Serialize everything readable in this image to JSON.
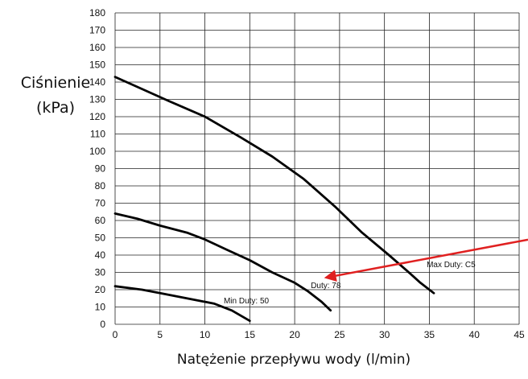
{
  "chart_data": {
    "type": "line",
    "ylabel_line1": "Ciśnienie",
    "ylabel_line2": "(kPa)",
    "xlabel": "Natężenie przepływu wody (l/min)",
    "xlim": [
      0,
      45
    ],
    "ylim": [
      0,
      180
    ],
    "xticks": [
      0,
      5,
      10,
      15,
      20,
      25,
      30,
      35,
      40,
      45
    ],
    "yticks": [
      0,
      10,
      20,
      30,
      40,
      50,
      60,
      70,
      80,
      90,
      100,
      110,
      120,
      130,
      140,
      150,
      160,
      170,
      180
    ],
    "grid": true,
    "series": [
      {
        "label": "Max Duty: C5",
        "x": [
          0,
          3,
          6,
          10,
          14,
          17.5,
          21,
          24.5,
          27.5,
          30.5,
          32.5,
          34,
          35.5
        ],
        "y": [
          143,
          136,
          129,
          120,
          108,
          97,
          84,
          68,
          53,
          40,
          31,
          24,
          18
        ]
      },
      {
        "label": "Duty: 78",
        "x": [
          0,
          2.5,
          5,
          8,
          10,
          12.5,
          15,
          17.5,
          20,
          21.5,
          23,
          24
        ],
        "y": [
          64,
          61,
          57,
          53,
          49,
          43,
          37,
          30,
          24,
          19,
          13,
          8
        ]
      },
      {
        "label": "Min Duty: 50",
        "x": [
          0,
          3,
          5,
          8,
          11,
          13,
          15
        ],
        "y": [
          22,
          20,
          18,
          15,
          12,
          8,
          2
        ]
      }
    ],
    "annotations": [
      {
        "text": "Max Duty: C5",
        "x": 34.7,
        "y": 33
      },
      {
        "text": "Duty: 78",
        "x": 21.8,
        "y": 21
      },
      {
        "text": "Min Duty: 50",
        "x": 12.1,
        "y": 12
      }
    ],
    "arrow": {
      "color": "#e02020",
      "target_x": 23.5,
      "target_y": 27
    }
  }
}
